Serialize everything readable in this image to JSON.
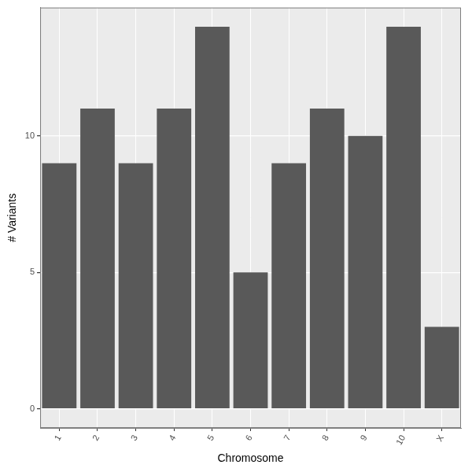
{
  "chart_data": {
    "type": "bar",
    "x_label": "Chromosome",
    "y_label": "# Variants",
    "categories": [
      "1",
      "2",
      "3",
      "4",
      "5",
      "6",
      "7",
      "8",
      "9",
      "10",
      "X"
    ],
    "values": [
      9,
      11,
      9,
      11,
      14,
      5,
      9,
      11,
      10,
      14,
      3
    ],
    "color": "#595959",
    "ylim": [
      -0.7,
      14.7
    ],
    "yticks": [
      0,
      5,
      10
    ],
    "grid": true
  }
}
